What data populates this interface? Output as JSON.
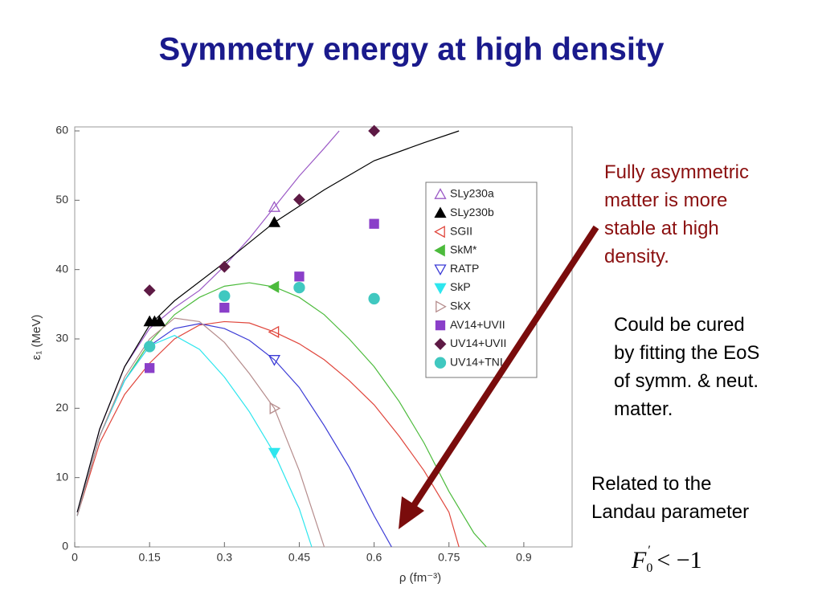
{
  "title": "Symmetry energy at high density",
  "chart_data": {
    "type": "scatter",
    "x_label": "ρ (fm⁻³)",
    "y_label": "ε₁ (MeV)",
    "xlim": [
      0,
      1.0
    ],
    "ylim": [
      0,
      60
    ],
    "xticks": [
      0,
      0.15,
      0.3,
      0.45,
      0.6,
      0.75,
      0.9
    ],
    "yticks": [
      0,
      10,
      20,
      30,
      40,
      50,
      60
    ],
    "legend": "upper right",
    "series": [
      {
        "name": "SLy230a",
        "color": "#9b59c6",
        "marker": "triangle-up",
        "filled": false,
        "x": [
          0.4
        ],
        "values": [
          49
        ],
        "fit_x": [
          0.005,
          0.05,
          0.1,
          0.15,
          0.2,
          0.25,
          0.3,
          0.35,
          0.4,
          0.45,
          0.5,
          0.53
        ],
        "fit_values": [
          5,
          17,
          26,
          31.5,
          34.5,
          37,
          40.5,
          44.5,
          49,
          53.5,
          57.5,
          60
        ]
      },
      {
        "name": "SLy230b",
        "color": "#000000",
        "marker": "triangle-up",
        "filled": true,
        "x": [
          0.15,
          0.16,
          0.17,
          0.4
        ],
        "values": [
          32.5,
          32.5,
          32.5,
          46.8
        ],
        "fit_x": [
          0.005,
          0.05,
          0.1,
          0.15,
          0.2,
          0.3,
          0.4,
          0.5,
          0.6,
          0.7,
          0.77
        ],
        "fit_values": [
          5,
          17,
          26,
          32,
          35.5,
          41,
          46.8,
          51.5,
          55.7,
          58.3,
          60
        ]
      },
      {
        "name": "SGII",
        "color": "#e0463c",
        "marker": "triangle-left",
        "filled": false,
        "x": [
          0.4
        ],
        "values": [
          31
        ],
        "fit_x": [
          0.005,
          0.05,
          0.1,
          0.15,
          0.2,
          0.25,
          0.3,
          0.35,
          0.4,
          0.45,
          0.5,
          0.55,
          0.6,
          0.65,
          0.7,
          0.75,
          0.77
        ],
        "fit_values": [
          4.5,
          15,
          22,
          26.5,
          30,
          32,
          32.5,
          32.3,
          31,
          29.3,
          27,
          24,
          20.5,
          16,
          11,
          5,
          0
        ]
      },
      {
        "name": "SkM*",
        "color": "#4cbb3c",
        "marker": "triangle-left",
        "filled": true,
        "x": [
          0.4
        ],
        "values": [
          37.5
        ],
        "fit_x": [
          0.005,
          0.05,
          0.1,
          0.15,
          0.2,
          0.25,
          0.3,
          0.35,
          0.4,
          0.45,
          0.5,
          0.55,
          0.6,
          0.65,
          0.7,
          0.75,
          0.8,
          0.825
        ],
        "fit_values": [
          4.5,
          16,
          24,
          29.5,
          33.5,
          36,
          37.6,
          38.1,
          37.5,
          36,
          33.5,
          30,
          26,
          21,
          15,
          8,
          2,
          0
        ]
      },
      {
        "name": "RATP",
        "color": "#3b3bd6",
        "marker": "triangle-down",
        "filled": false,
        "x": [
          0.4
        ],
        "values": [
          27
        ],
        "fit_x": [
          0.005,
          0.05,
          0.1,
          0.15,
          0.2,
          0.25,
          0.3,
          0.35,
          0.4,
          0.45,
          0.5,
          0.55,
          0.6,
          0.635
        ],
        "fit_values": [
          4.5,
          16,
          24,
          29,
          31.5,
          32.2,
          31.5,
          29.8,
          27,
          23,
          17.5,
          11.5,
          4.5,
          0
        ]
      },
      {
        "name": "SkP",
        "color": "#2ee6ee",
        "marker": "triangle-down",
        "filled": true,
        "x": [
          0.4
        ],
        "values": [
          13.6
        ],
        "fit_x": [
          0.005,
          0.05,
          0.1,
          0.15,
          0.2,
          0.25,
          0.3,
          0.35,
          0.4,
          0.45,
          0.475
        ],
        "fit_values": [
          4.5,
          16,
          24,
          29,
          30.5,
          28.5,
          24.5,
          19.5,
          13.5,
          5.5,
          0
        ]
      },
      {
        "name": "SkX",
        "color": "#b58c8c",
        "marker": "triangle-right",
        "filled": false,
        "x": [
          0.4
        ],
        "values": [
          20
        ],
        "fit_x": [
          0.005,
          0.05,
          0.1,
          0.15,
          0.2,
          0.25,
          0.3,
          0.35,
          0.4,
          0.45,
          0.5
        ],
        "fit_values": [
          4.5,
          16,
          24.5,
          30,
          33,
          32.5,
          29.5,
          25,
          20,
          11,
          0
        ]
      },
      {
        "name": "AV14+UVII",
        "color": "#8a3fc9",
        "marker": "square",
        "filled": true,
        "x": [
          0.15,
          0.3,
          0.45,
          0.6
        ],
        "values": [
          25.8,
          34.5,
          39,
          46.6
        ]
      },
      {
        "name": "UV14+UVII",
        "color": "#5e1a45",
        "marker": "diamond",
        "filled": true,
        "x": [
          0.15,
          0.3,
          0.45,
          0.6
        ],
        "values": [
          37,
          40.4,
          50.1,
          60
        ]
      },
      {
        "name": "UV14+TNI",
        "color": "#40c8c0",
        "marker": "circle",
        "filled": true,
        "x": [
          0.15,
          0.3,
          0.45,
          0.6
        ],
        "values": [
          28.9,
          36.2,
          37.4,
          35.8
        ]
      }
    ]
  },
  "notes": [
    {
      "lines": [
        "Fully asymmetric",
        "matter is more",
        "stable at high",
        "density."
      ]
    },
    {
      "lines": [
        "Could be cured",
        "by fitting the EoS",
        "of symm. & neut.",
        "matter."
      ]
    },
    {
      "lines": [
        "Related to the",
        "Landau parameter"
      ]
    }
  ],
  "formula": {
    "base": "F",
    "sub": "0",
    "sup": "′",
    "rest": " < −1"
  }
}
